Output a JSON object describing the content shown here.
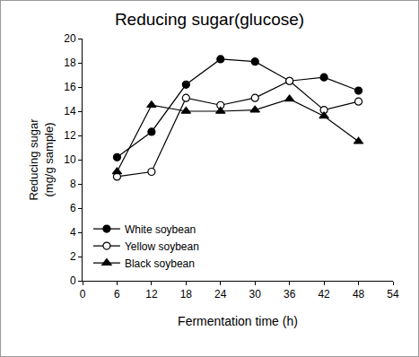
{
  "chart_data": {
    "type": "line",
    "title": "Reducing sugar(glucose)",
    "x_label": "Fermentation time (h)",
    "y_label": "Reducing sugar\n(mg/g sample)",
    "x": [
      6,
      12,
      18,
      24,
      30,
      36,
      42,
      48
    ],
    "series": [
      {
        "name": "White soybean",
        "color": "#000000",
        "marker": "circle",
        "line_style": "solid",
        "values": [
          10.2,
          12.3,
          16.2,
          18.3,
          18.1,
          16.5,
          16.8,
          15.7
        ]
      },
      {
        "name": "Yellow soybean",
        "color": "#000000",
        "marker": "circle-open",
        "line_style": "solid",
        "values": [
          8.6,
          9.0,
          15.1,
          14.5,
          15.1,
          16.5,
          14.1,
          14.8
        ]
      },
      {
        "name": "Black soybean",
        "color": "#000000",
        "marker": "triangle-up",
        "line_style": "solid",
        "values": [
          9.0,
          14.5,
          14.0,
          14.0,
          14.1,
          15.0,
          13.6,
          11.5
        ]
      }
    ],
    "xlim": [
      0,
      54
    ],
    "xticks": [
      0,
      6,
      12,
      18,
      24,
      30,
      36,
      42,
      48,
      54
    ],
    "ylim": [
      0,
      20
    ],
    "yticks": [
      0,
      2,
      4,
      6,
      8,
      10,
      12,
      14,
      16,
      18,
      20
    ],
    "grid": false,
    "legend": "lower left"
  }
}
